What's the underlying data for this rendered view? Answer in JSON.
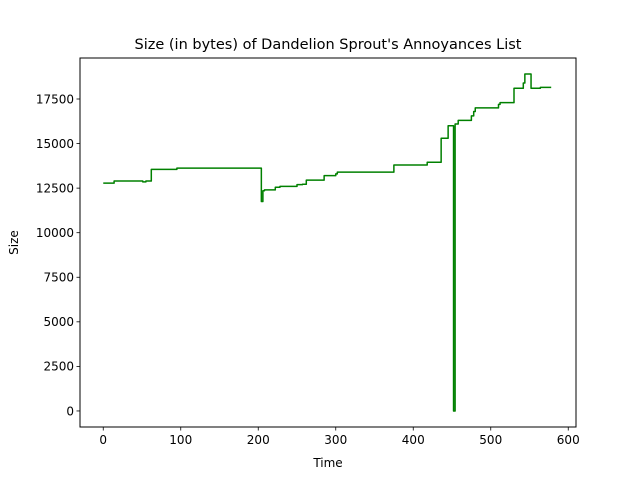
{
  "chart_data": {
    "type": "line",
    "title": "Size (in bytes) of Dandelion Sprout's Annoyances List",
    "xlabel": "Time",
    "ylabel": "Size",
    "xlim": [
      -30,
      610
    ],
    "ylim": [
      -900,
      19800
    ],
    "grid": false,
    "legend": "none",
    "colors": {
      "line": "#008000",
      "axes": "#000000",
      "background": "#ffffff"
    },
    "xticks": [
      0,
      100,
      200,
      300,
      400,
      500,
      600
    ],
    "yticks": [
      0,
      2500,
      5000,
      7500,
      10000,
      12500,
      15000,
      17500
    ],
    "series": [
      {
        "x": [
          0,
          14,
          14,
          51,
          51,
          55,
          55,
          62,
          62,
          95,
          95,
          204,
          204,
          206,
          206,
          208,
          208,
          222,
          222,
          228,
          228,
          250,
          250,
          257,
          257,
          262,
          262,
          285,
          285,
          300,
          300,
          302,
          302,
          375,
          375,
          418,
          418,
          436,
          436,
          445,
          445,
          452,
          452,
          454,
          454,
          456,
          456,
          458,
          458,
          475,
          475,
          478,
          478,
          480,
          480,
          510,
          510,
          512,
          512,
          530,
          530,
          542,
          542,
          544,
          544,
          548,
          548,
          552,
          552,
          564,
          564,
          570,
          570,
          578
        ],
        "y": [
          12780,
          12780,
          12900,
          12900,
          12850,
          12850,
          12900,
          12900,
          13550,
          13550,
          13620,
          13620,
          11750,
          11750,
          12350,
          12350,
          12400,
          12400,
          12550,
          12550,
          12600,
          12600,
          12700,
          12700,
          12720,
          12720,
          12950,
          12950,
          13200,
          13200,
          13300,
          13300,
          13400,
          13400,
          13800,
          13800,
          13950,
          13950,
          15300,
          15300,
          16000,
          16000,
          0,
          0,
          16100,
          16100,
          16100,
          16100,
          16300,
          16300,
          16550,
          16550,
          16800,
          16800,
          17000,
          17000,
          17200,
          17200,
          17300,
          17300,
          18100,
          18100,
          18400,
          18400,
          18900,
          18900,
          18900,
          18900,
          18100,
          18100,
          18150,
          18150,
          18150,
          18150
        ]
      }
    ]
  }
}
